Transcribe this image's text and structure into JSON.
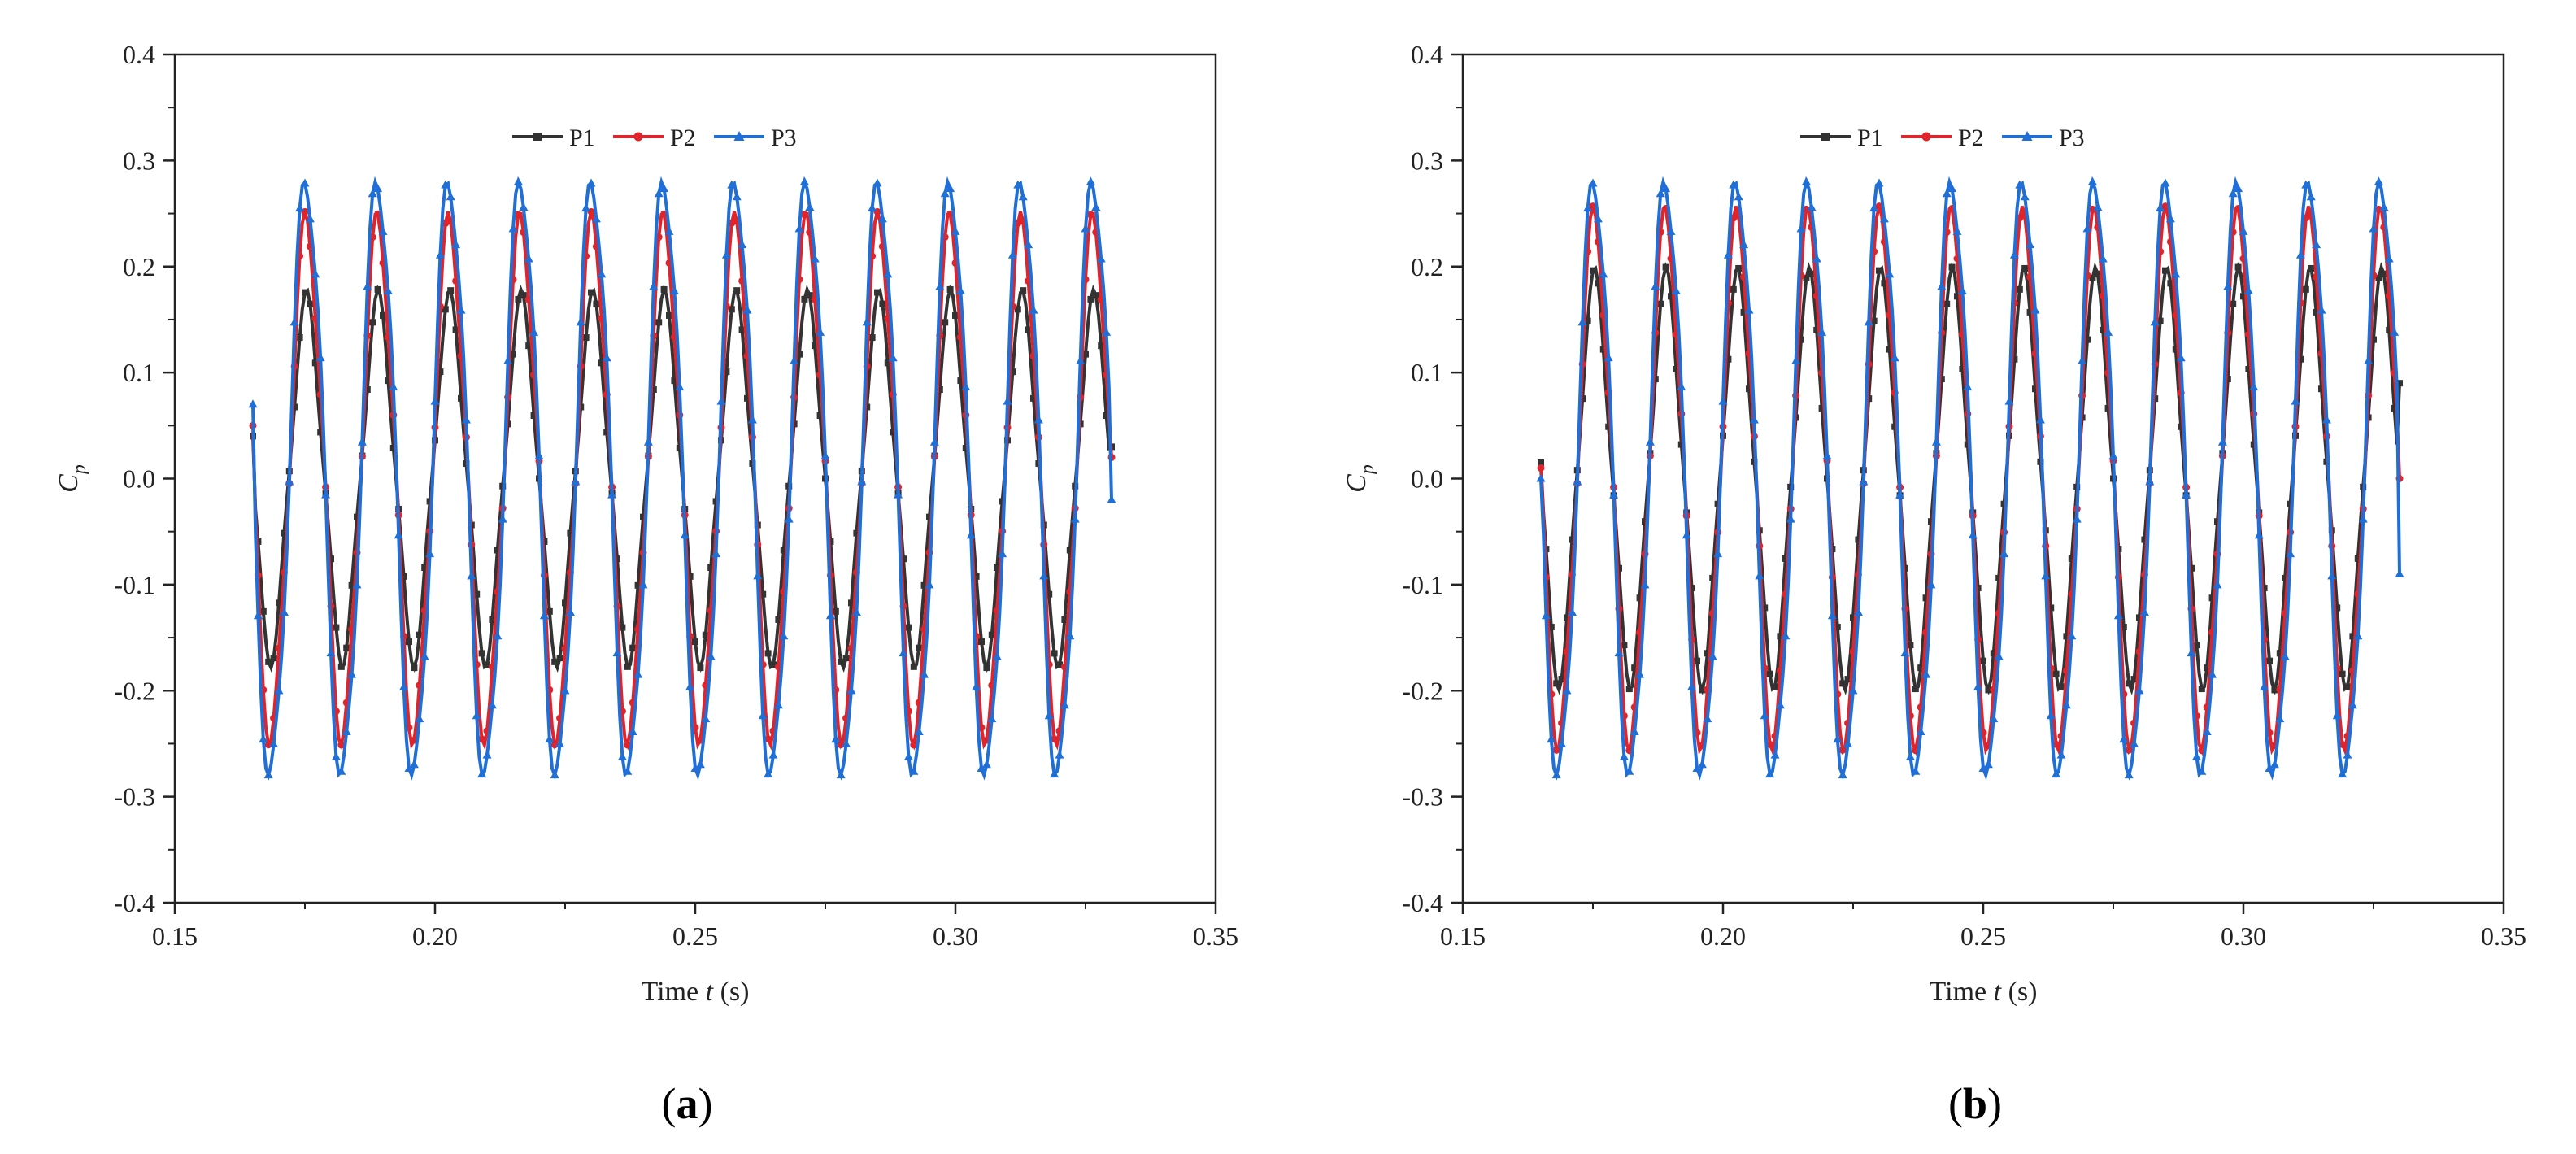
{
  "chart_data": [
    {
      "type": "line",
      "panel_label": "(a)",
      "panel_letter": "a",
      "xlabel_prefix": "Time ",
      "xlabel_var": "t",
      "xlabel_suffix": " (s)",
      "ylabel_base": "C",
      "ylabel_sub": "p",
      "xlim": [
        0.15,
        0.35
      ],
      "ylim": [
        -0.4,
        0.4
      ],
      "x_ticks": [
        "0.15",
        "0.20",
        "0.25",
        "0.30",
        "0.35"
      ],
      "y_ticks": [
        "-0.4",
        "-0.3",
        "-0.2",
        "-0.1",
        "0.0",
        "0.1",
        "0.2",
        "0.3",
        "0.4"
      ],
      "grid": false,
      "legend_position": "top-center",
      "t_start": 0.165,
      "t_end": 0.33,
      "period": 0.01375,
      "series": [
        {
          "name": "P1",
          "color": "#333333",
          "marker": "square",
          "amplitude": 0.17,
          "start_value": 0.04,
          "end_value": 0.03
        },
        {
          "name": "P2",
          "color": "#e0242b",
          "marker": "circle",
          "amplitude": 0.245,
          "start_value": 0.05,
          "end_value": 0.02
        },
        {
          "name": "P3",
          "color": "#1f6fd6",
          "marker": "triangle",
          "amplitude": 0.29,
          "start_value": 0.07,
          "end_value": -0.02
        }
      ]
    },
    {
      "type": "line",
      "panel_label": "(b)",
      "panel_letter": "b",
      "xlabel_prefix": "Time ",
      "xlabel_var": "t",
      "xlabel_suffix": " (s)",
      "ylabel_base": "C",
      "ylabel_sub": "p",
      "xlim": [
        0.15,
        0.35
      ],
      "ylim": [
        -0.4,
        0.4
      ],
      "x_ticks": [
        "0.15",
        "0.20",
        "0.25",
        "0.30",
        "0.35"
      ],
      "y_ticks": [
        "-0.4",
        "-0.3",
        "-0.2",
        "-0.1",
        "0.0",
        "0.1",
        "0.2",
        "0.3",
        "0.4"
      ],
      "grid": false,
      "legend_position": "top-center",
      "t_start": 0.165,
      "t_end": 0.33,
      "period": 0.01375,
      "series": [
        {
          "name": "P1",
          "color": "#333333",
          "marker": "square",
          "amplitude": 0.19,
          "start_value": 0.015,
          "end_value": 0.09
        },
        {
          "name": "P2",
          "color": "#e0242b",
          "marker": "circle",
          "amplitude": 0.25,
          "start_value": 0.01,
          "end_value": 0.0
        },
        {
          "name": "P3",
          "color": "#1f6fd6",
          "marker": "triangle",
          "amplitude": 0.29,
          "start_value": 0.0,
          "end_value": -0.09
        }
      ]
    }
  ]
}
